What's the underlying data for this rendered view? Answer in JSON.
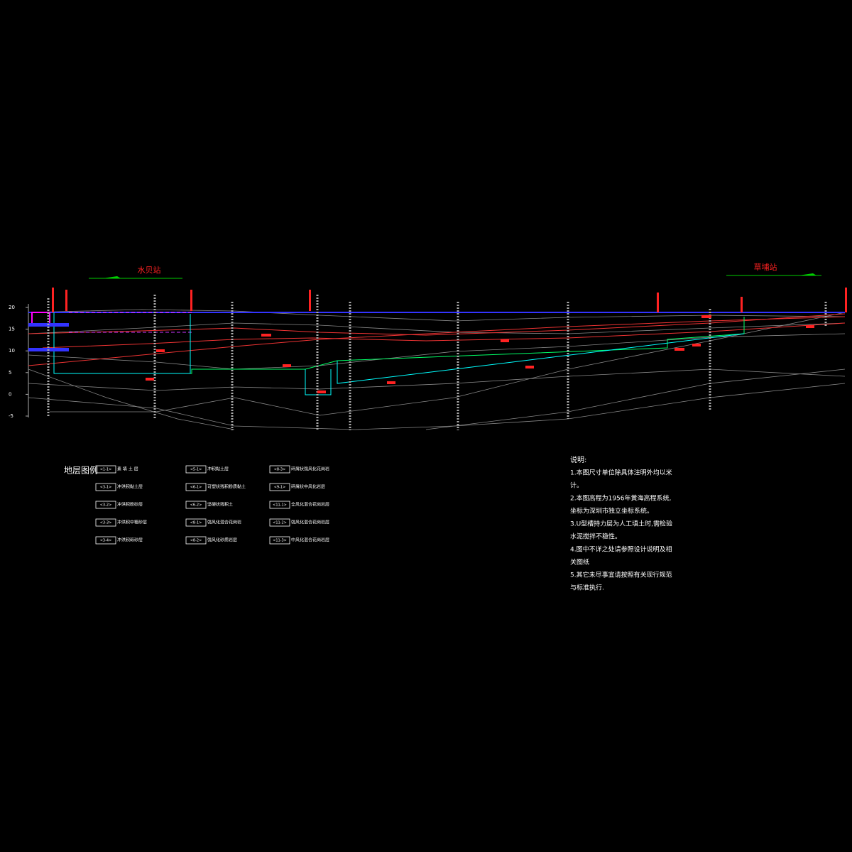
{
  "stations": [
    "水贝站",
    "草埔站"
  ],
  "elevation_ticks": [
    20,
    15,
    10,
    5,
    0,
    -5
  ],
  "legend": {
    "title": "地层图例",
    "items": [
      {
        "code": "<1-1>",
        "name": "素 填 土 层"
      },
      {
        "code": "<3-1>",
        "name": "冲洪积黏土层"
      },
      {
        "code": "<3-2>",
        "name": "冲洪积粉砂层"
      },
      {
        "code": "<3-3>",
        "name": "冲洪积中粗砂层"
      },
      {
        "code": "<3-4>",
        "name": "冲洪积砾砂层"
      },
      {
        "code": "<5-1>",
        "name": "冲积黏土层"
      },
      {
        "code": "<6-1>",
        "name": "可塑状残积粉质黏土"
      },
      {
        "code": "<6-2>",
        "name": "坚硬状残积土"
      },
      {
        "code": "<8-1>",
        "name": "强风化混合花岗岩"
      },
      {
        "code": "<8-2>",
        "name": "强风化砂质岩层"
      },
      {
        "code": "<8-3>",
        "name": "碎屑状强风化花岗岩"
      },
      {
        "code": "<9-1>",
        "name": "碎屑状中风化岩层"
      },
      {
        "code": "<11-1>",
        "name": "全风化混合花岗岩层"
      },
      {
        "code": "<11-2>",
        "name": "强风化混合花岗岩层"
      },
      {
        "code": "<11-3>",
        "name": "中风化混合花岗岩层"
      }
    ]
  },
  "notes": {
    "title": "说明:",
    "lines": [
      "1.本图尺寸单位除具体注明外均以米",
      "计。",
      "2.本图高程为1956年黄海高程系统,",
      "坐标为深圳市独立坐标系统。",
      "3.U型槽持力层为人工填土时,需检验",
      "水泥搅拌不稳性。",
      "4.图中不详之处请参照设计说明及相",
      "关图纸",
      "5.其它未尽事宜请按照有关现行规范",
      "与标准执行."
    ]
  }
}
